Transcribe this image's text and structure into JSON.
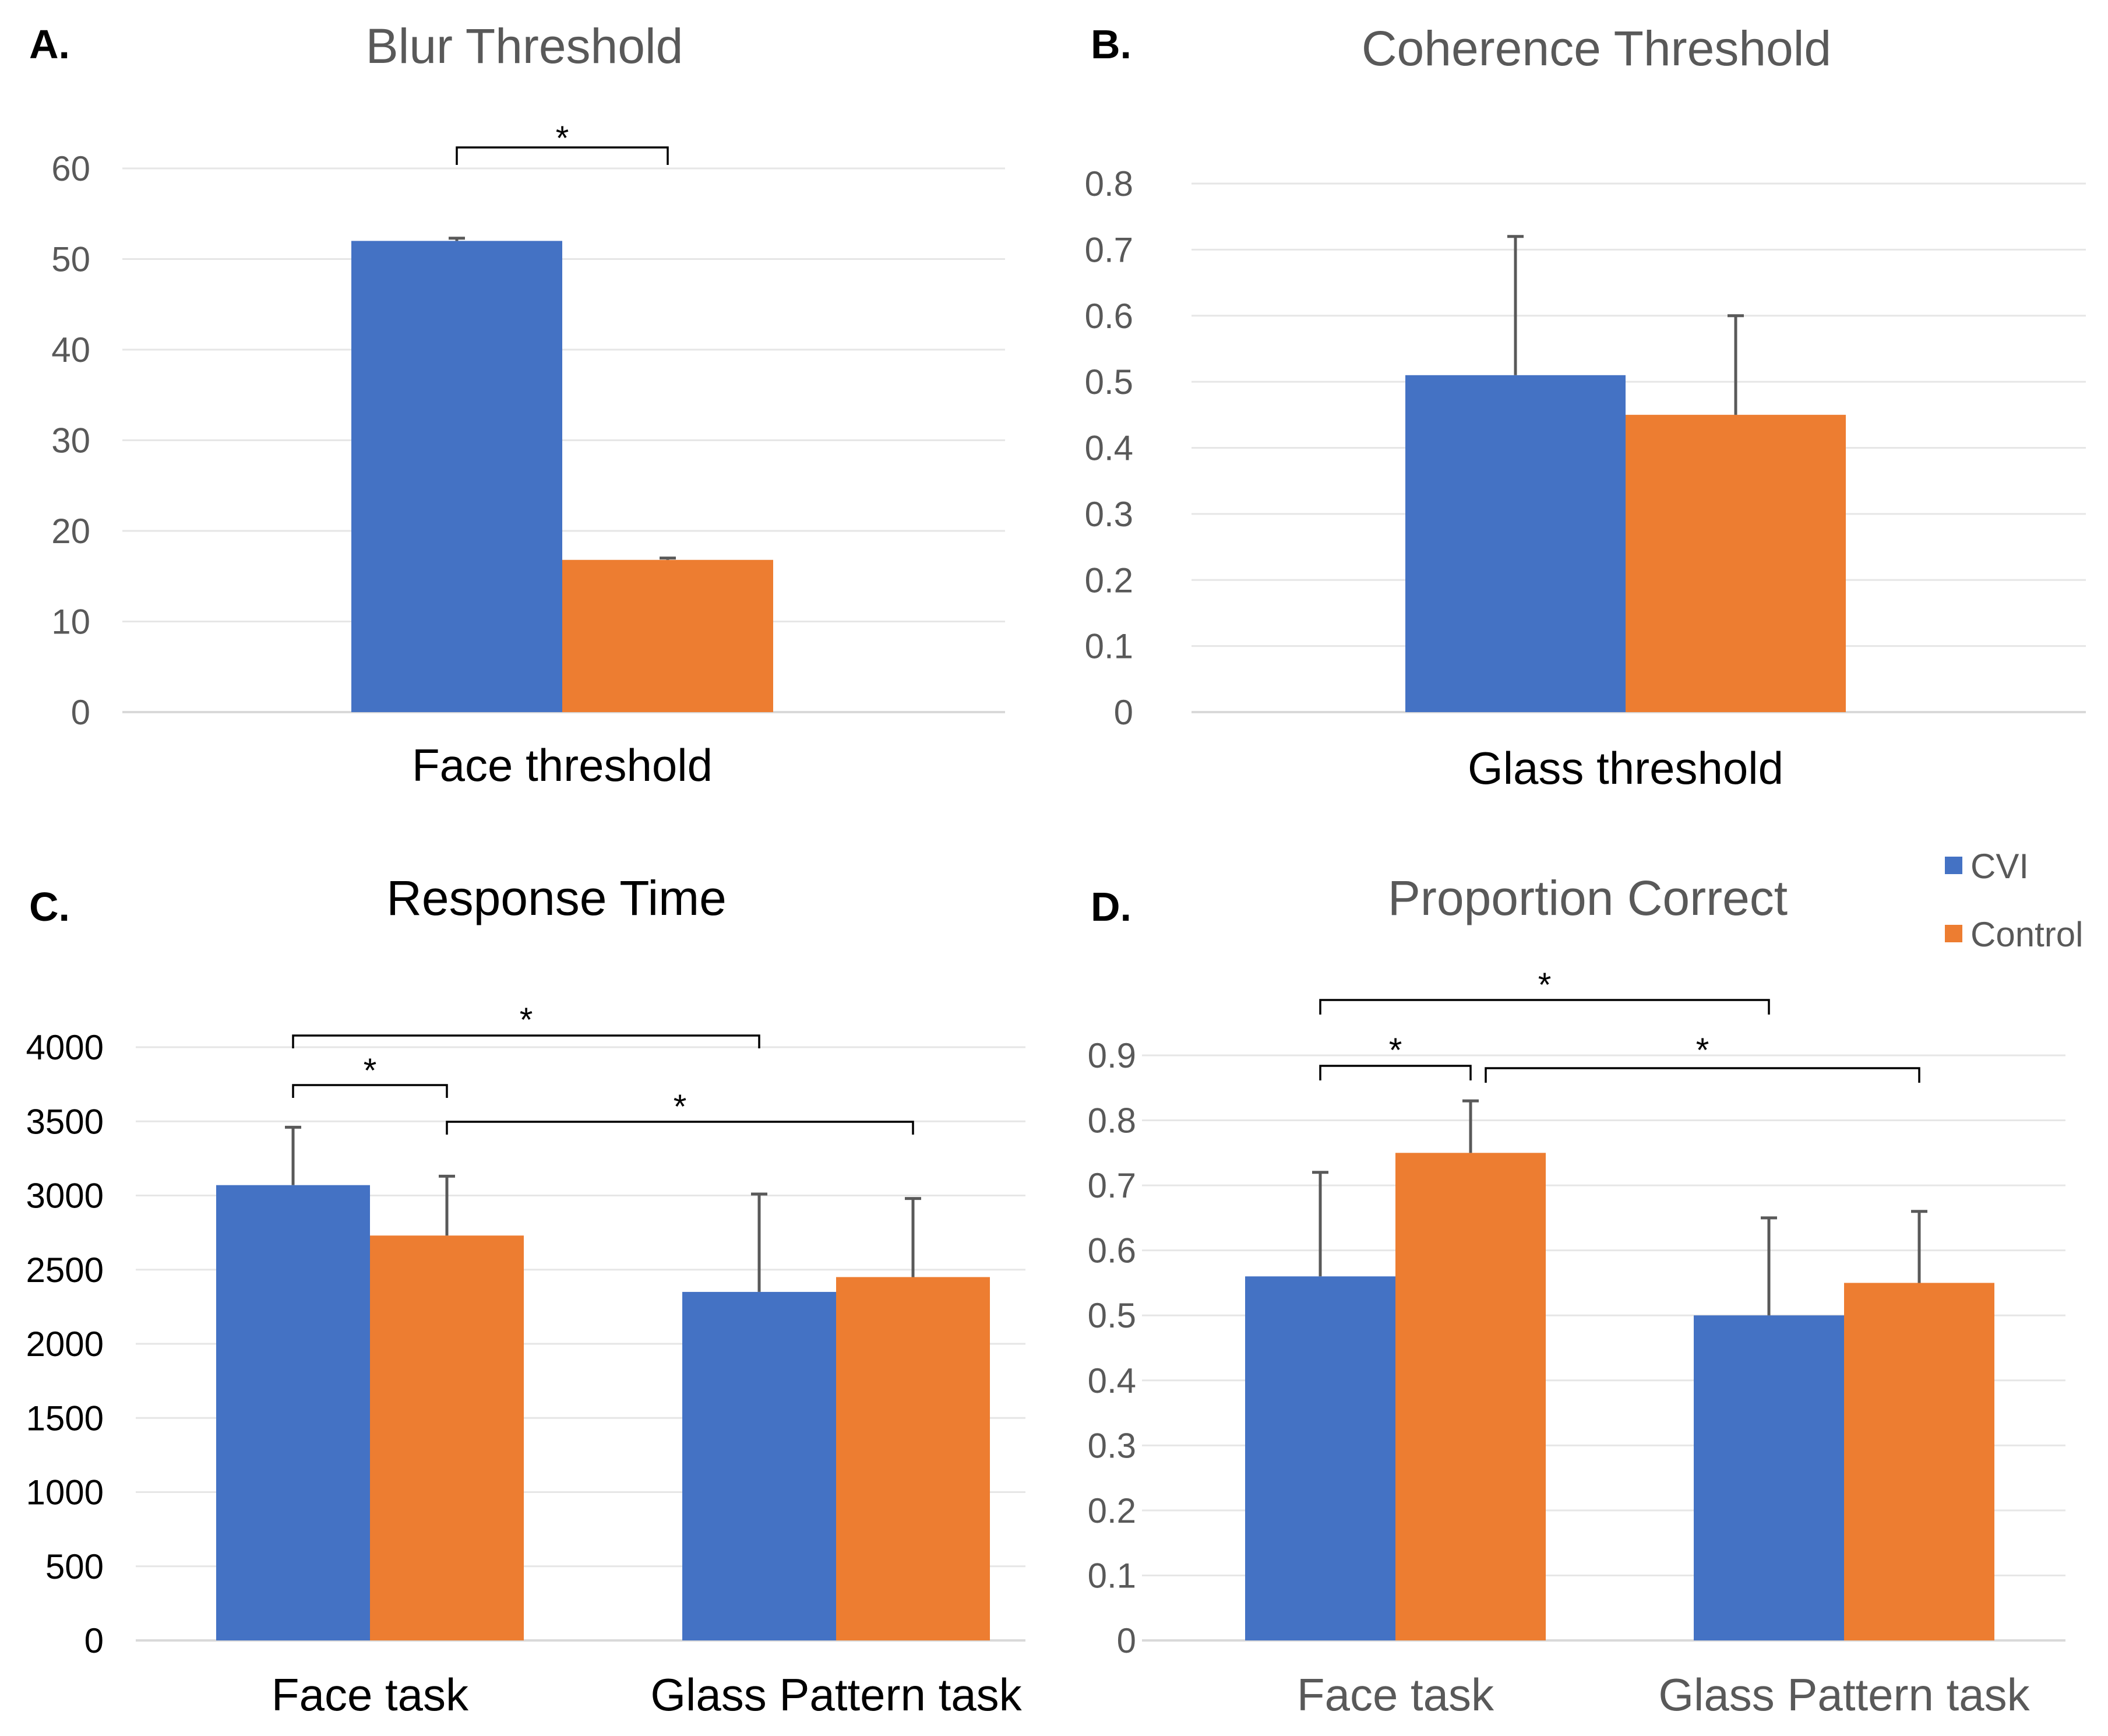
{
  "colors": {
    "cvi": "#4472C4",
    "control": "#ED7D31"
  },
  "legend": [
    {
      "label": "CVI",
      "color": "#4472C4"
    },
    {
      "label": "Control",
      "color": "#ED7D31"
    }
  ],
  "chart_data": [
    {
      "panel": "A.",
      "type": "bar",
      "title": "Blur Threshold",
      "categories": [
        "Face threshold"
      ],
      "series": [
        {
          "name": "CVI",
          "values": [
            52
          ],
          "errors": [
            0.3
          ]
        },
        {
          "name": "Control",
          "values": [
            16.8
          ],
          "errors": [
            0.2
          ]
        }
      ],
      "ylim": [
        0,
        60
      ],
      "yticks": [
        "0",
        "10",
        "20",
        "30",
        "40",
        "50",
        "60"
      ],
      "significance": [
        {
          "label": "*",
          "from": [
            "Face threshold",
            "CVI"
          ],
          "to": [
            "Face threshold",
            "Control"
          ]
        }
      ]
    },
    {
      "panel": "B.",
      "type": "bar",
      "title": "Coherence Threshold",
      "categories": [
        "Glass threshold"
      ],
      "series": [
        {
          "name": "CVI",
          "values": [
            0.51
          ],
          "errors": [
            0.21
          ]
        },
        {
          "name": "Control",
          "values": [
            0.45
          ],
          "errors": [
            0.15
          ]
        }
      ],
      "ylim": [
        0,
        0.8
      ],
      "yticks": [
        "0",
        "0.1",
        "0.2",
        "0.3",
        "0.4",
        "0.5",
        "0.6",
        "0.7",
        "0.8"
      ],
      "significance": []
    },
    {
      "panel": "C.",
      "type": "bar",
      "title": "Response Time",
      "categories": [
        "Face task",
        "Glass Pattern task"
      ],
      "series": [
        {
          "name": "CVI",
          "values": [
            3070,
            2350
          ],
          "errors": [
            390,
            660
          ]
        },
        {
          "name": "Control",
          "values": [
            2730,
            2450
          ],
          "errors": [
            400,
            530
          ]
        }
      ],
      "ylim": [
        0,
        4000
      ],
      "yticks": [
        "0",
        "500",
        "1000",
        "1500",
        "2000",
        "2500",
        "3000",
        "3500",
        "4000"
      ],
      "significance": [
        {
          "label": "*",
          "from": [
            "Face task",
            "CVI"
          ],
          "to": [
            "Glass Pattern task",
            "CVI"
          ]
        },
        {
          "label": "*",
          "from": [
            "Face task",
            "CVI"
          ],
          "to": [
            "Face task",
            "Control"
          ]
        },
        {
          "label": "*",
          "from": [
            "Face task",
            "Control"
          ],
          "to": [
            "Glass Pattern task",
            "Control"
          ]
        }
      ]
    },
    {
      "panel": "D.",
      "type": "bar",
      "title": "Proportion Correct",
      "categories": [
        "Face task",
        "Glass Pattern task"
      ],
      "series": [
        {
          "name": "CVI",
          "values": [
            0.56,
            0.5
          ],
          "errors": [
            0.16,
            0.15
          ]
        },
        {
          "name": "Control",
          "values": [
            0.75,
            0.55
          ],
          "errors": [
            0.08,
            0.11
          ]
        }
      ],
      "ylim": [
        0,
        0.9
      ],
      "yticks": [
        "0",
        "0.1",
        "0.2",
        "0.3",
        "0.4",
        "0.5",
        "0.6",
        "0.7",
        "0.8",
        "0.9"
      ],
      "significance": [
        {
          "label": "*",
          "from": [
            "Face task",
            "CVI"
          ],
          "to": [
            "Glass Pattern task",
            "CVI"
          ]
        },
        {
          "label": "*",
          "from": [
            "Face task",
            "CVI"
          ],
          "to": [
            "Face task",
            "Control"
          ]
        },
        {
          "label": "*",
          "from": [
            "Face task",
            "Control"
          ],
          "to": [
            "Glass Pattern task",
            "Control"
          ]
        }
      ]
    }
  ]
}
